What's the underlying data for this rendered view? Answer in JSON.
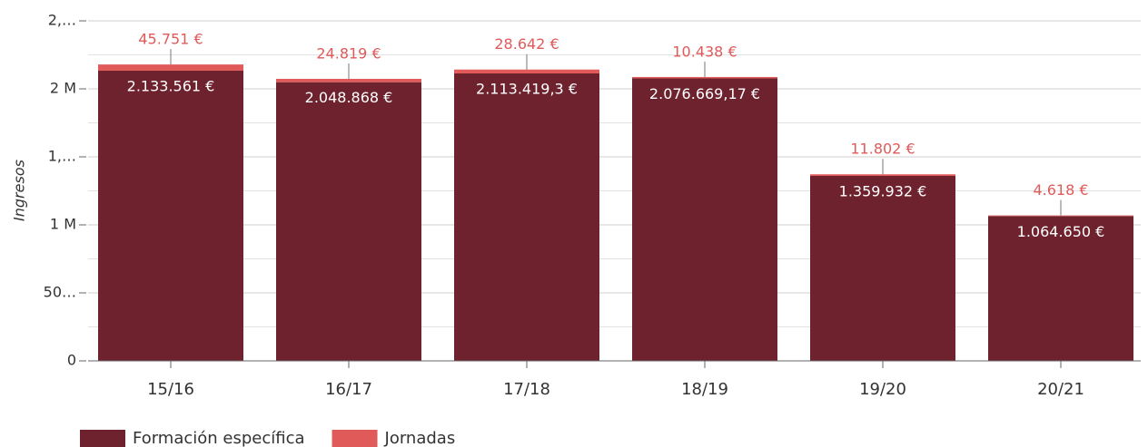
{
  "chart_data": {
    "type": "stacked_bar",
    "y_label": "Ingresos",
    "categories": [
      "15/16",
      "16/17",
      "17/18",
      "18/19",
      "19/20",
      "20/21"
    ],
    "series": [
      {
        "name": "Formación específica",
        "color": "#6e222d",
        "values": [
          2133561,
          2048868,
          2113419.3,
          2076669.17,
          1359932,
          1064650
        ],
        "value_labels": [
          "2.133.561 €",
          "2.048.868 €",
          "2.113.419,3 €",
          "2.076.669,17 €",
          "1.359.932 €",
          "1.064.650 €"
        ]
      },
      {
        "name": "Jornadas",
        "color": "#e05a5a",
        "values": [
          45751,
          24819,
          28642,
          10438,
          11802,
          4618
        ],
        "value_labels": [
          "45.751 €",
          "24.819 €",
          "28.642 €",
          "10.438 €",
          "11.802 €",
          "4.618 €"
        ]
      }
    ],
    "ylim": [
      0,
      2500000
    ],
    "yticks": [
      0,
      {
        "value": 500000,
        "label": "50…"
      },
      {
        "value": 1000000,
        "label": "1 M"
      },
      {
        "value": 1500000,
        "label": "1,…"
      },
      {
        "value": 2000000,
        "label": "2 M"
      },
      {
        "value": 2500000,
        "label": "2,…"
      }
    ],
    "minor_yticks": [
      250000,
      750000,
      1250000,
      1750000,
      2250000
    ],
    "grid": true,
    "legend": "bottom"
  }
}
